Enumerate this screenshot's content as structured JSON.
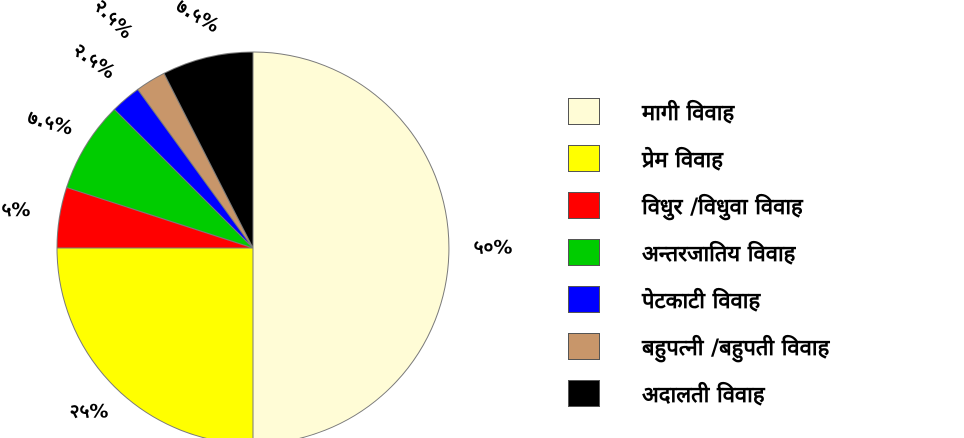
{
  "chart_data": {
    "type": "pie",
    "title": "",
    "slices": [
      {
        "name": "मागी विवाह",
        "value": 50,
        "label": "५०%",
        "color": "#FFFCD6"
      },
      {
        "name": "प्रेम विवाह",
        "value": 25,
        "label": "२५%",
        "color": "#FFFF00"
      },
      {
        "name": "विधुर /विधुवा विवाह",
        "value": 5,
        "label": "५%",
        "color": "#FF0000"
      },
      {
        "name": "अन्तरजातिय विवाह",
        "value": 7.5,
        "label": "७.५%",
        "color": "#00CC00"
      },
      {
        "name": "पेटकाटी विवाह",
        "value": 2.5,
        "label": "२.५%",
        "color": "#0000FF"
      },
      {
        "name": "बहुपत्नी /बहुपती विवाह",
        "value": 2.5,
        "label": "२.५%",
        "color": "#C8966A"
      },
      {
        "name": "अदालती विवाह",
        "value": 7.5,
        "label": "७.५%",
        "color": "#000000"
      }
    ],
    "legend_position": "right"
  }
}
